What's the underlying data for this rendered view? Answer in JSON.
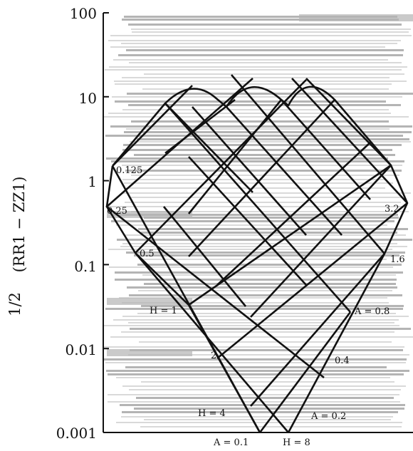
{
  "chart_data": {
    "type": "line",
    "title": "",
    "xlabel": "",
    "ylabel": "(RR1 − ZZ1)",
    "ylabel_prefix": "1/2",
    "y_scale": "log",
    "ylim": [
      0.001,
      100
    ],
    "y_ticks": [
      {
        "value": 100,
        "label": "100"
      },
      {
        "value": 10,
        "label": "10"
      },
      {
        "value": 1,
        "label": "1"
      },
      {
        "value": 0.1,
        "label": "0.1"
      },
      {
        "value": 0.01,
        "label": "0.01"
      },
      {
        "value": 0.001,
        "label": "0.001"
      }
    ],
    "grid": false,
    "background": "dense horizontal gray bands",
    "family_H": {
      "values": [
        "1",
        "2",
        "4",
        "8"
      ],
      "labels": [
        "H = 1",
        "2",
        "H = 4",
        "H = 8"
      ]
    },
    "family_A": {
      "values": [
        "0.1",
        "0.2",
        "0.4",
        "0.8",
        "1.6",
        "3.2"
      ],
      "labels": [
        "A = 0.1",
        "A = 0.2",
        "0.4",
        "A = 0.8",
        "1.6",
        "3.2"
      ]
    },
    "left_edge_labels": [
      "0.125",
      "0.25",
      "0.5"
    ],
    "colors": {
      "lines": "#111111",
      "band_dark": "#b4b4b4",
      "band_light": "#d9d9d9"
    }
  }
}
